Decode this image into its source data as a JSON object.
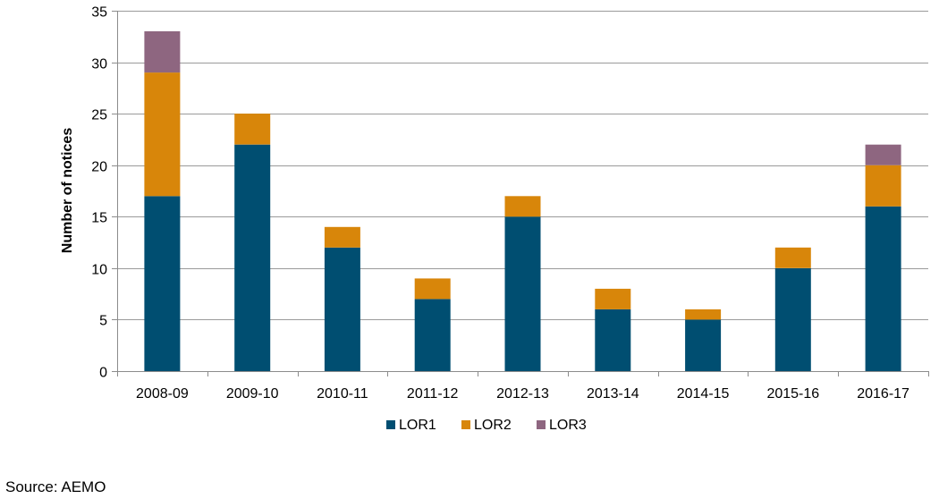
{
  "chart_data": {
    "type": "bar",
    "stacked": true,
    "categories": [
      "2008-09",
      "2009-10",
      "2010-11",
      "2011-12",
      "2012-13",
      "2013-14",
      "2014-15",
      "2015-16",
      "2016-17"
    ],
    "series": [
      {
        "name": "LOR1",
        "color": "#004E71",
        "values": [
          17,
          22,
          12,
          7,
          15,
          6,
          5,
          10,
          16
        ]
      },
      {
        "name": "LOR2",
        "color": "#D8860A",
        "values": [
          12,
          3,
          2,
          2,
          2,
          2,
          1,
          2,
          4
        ]
      },
      {
        "name": "LOR3",
        "color": "#8E6680",
        "values": [
          4,
          0,
          0,
          0,
          0,
          0,
          0,
          0,
          2
        ]
      }
    ],
    "ylabel": "Number of notices",
    "xlabel": "",
    "ylim": [
      0,
      35
    ],
    "yticks": [
      0,
      5,
      10,
      15,
      20,
      25,
      30,
      35
    ],
    "grid": "horizontal",
    "legend": "bottom-center"
  },
  "footer": {
    "source": "Source: AEMO"
  }
}
